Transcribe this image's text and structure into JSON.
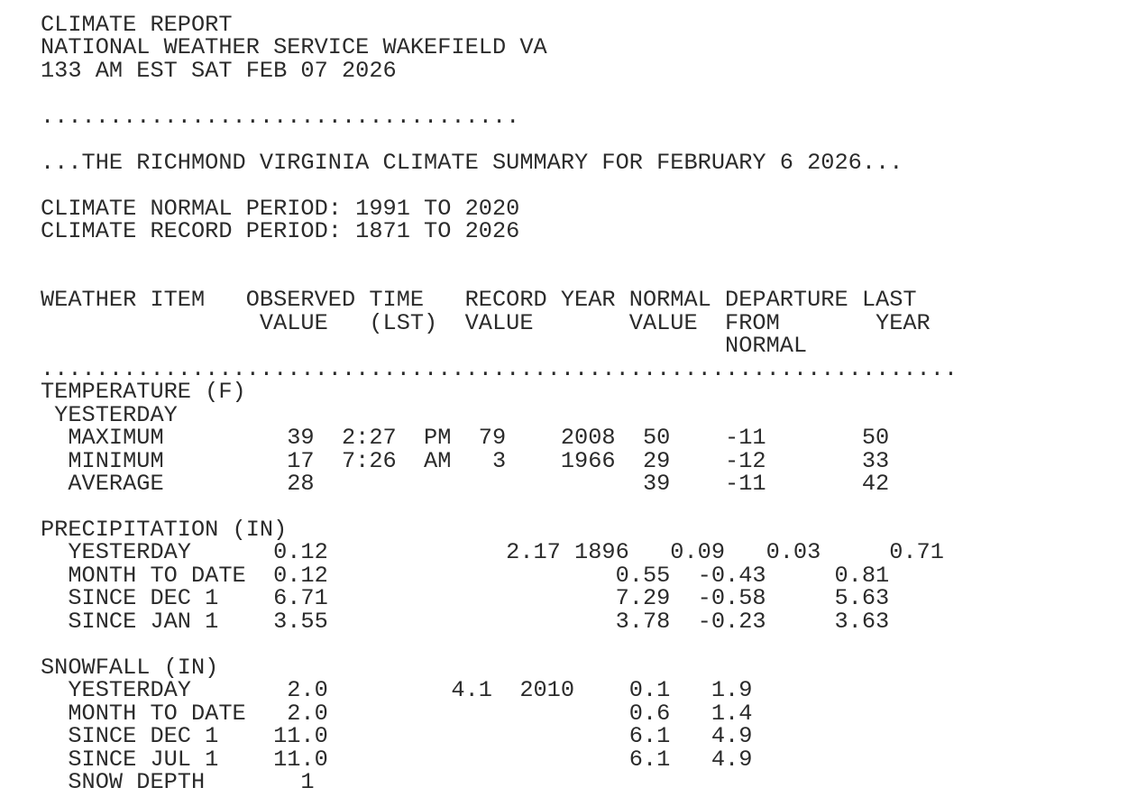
{
  "report": {
    "masthead": [
      "CLIMATE REPORT",
      "NATIONAL WEATHER SERVICE WAKEFIELD VA",
      "133 AM EST SAT FEB 07 2026",
      ""
    ],
    "separator": [
      "...................................",
      ""
    ],
    "headline": [
      "...THE RICHMOND VIRGINIA CLIMATE SUMMARY FOR FEBRUARY 6 2026...",
      ""
    ],
    "periods": [
      "CLIMATE NORMAL PERIOD: 1991 TO 2020",
      "CLIMATE RECORD PERIOD: 1871 TO 2026",
      "",
      ""
    ],
    "table_header": [
      "WEATHER ITEM   OBSERVED TIME   RECORD YEAR NORMAL DEPARTURE LAST",
      "                VALUE   (LST)  VALUE       VALUE  FROM       YEAR",
      "                                                  NORMAL",
      "..................................................................."
    ],
    "temperature": [
      "TEMPERATURE (F)",
      " YESTERDAY",
      "  MAXIMUM         39  2:27  PM  79    2008  50    -11       50",
      "  MINIMUM         17  7:26  AM   3    1966  29    -12       33",
      "  AVERAGE         28                        39    -11       42",
      ""
    ],
    "precipitation": [
      "PRECIPITATION (IN)",
      "  YESTERDAY      0.12             2.17 1896   0.09   0.03     0.71",
      "  MONTH TO DATE  0.12                     0.55  -0.43     0.81",
      "  SINCE DEC 1    6.71                     7.29  -0.58     5.63",
      "  SINCE JAN 1    3.55                     3.78  -0.23     3.63",
      ""
    ],
    "snowfall": [
      "SNOWFALL (IN)",
      "  YESTERDAY       2.0         4.1  2010    0.1   1.9",
      "  MONTH TO DATE   2.0                      0.6   1.4",
      "  SINCE DEC 1    11.0                      6.1   4.9",
      "  SINCE JUL 1    11.0                      6.1   4.9",
      "  SNOW DEPTH       1"
    ]
  },
  "table_values": {
    "column_headers": [
      "WEATHER ITEM",
      "OBSERVED VALUE",
      "TIME (LST)",
      "RECORD VALUE",
      "YEAR",
      "NORMAL VALUE",
      "DEPARTURE FROM NORMAL",
      "LAST YEAR"
    ],
    "temperature_f": {
      "title": "TEMPERATURE (F)",
      "subgroup": "YESTERDAY",
      "rows": [
        {
          "item": "MAXIMUM",
          "observed": 39,
          "time_lst": "2:27 PM",
          "record": 79,
          "record_year": 2008,
          "normal": 50,
          "departure": -11,
          "last_year": 50
        },
        {
          "item": "MINIMUM",
          "observed": 17,
          "time_lst": "7:26 AM",
          "record": 3,
          "record_year": 1966,
          "normal": 29,
          "departure": -12,
          "last_year": 33
        },
        {
          "item": "AVERAGE",
          "observed": 28,
          "normal": 39,
          "departure": -11,
          "last_year": 42
        }
      ]
    },
    "precipitation_in": {
      "title": "PRECIPITATION (IN)",
      "rows": [
        {
          "item": "YESTERDAY",
          "observed": 0.12,
          "record": 2.17,
          "record_year": 1896,
          "normal": 0.09,
          "departure": 0.03,
          "last_year": 0.71
        },
        {
          "item": "MONTH TO DATE",
          "observed": 0.12,
          "normal": 0.55,
          "departure": -0.43,
          "last_year": 0.81
        },
        {
          "item": "SINCE DEC 1",
          "observed": 6.71,
          "normal": 7.29,
          "departure": -0.58,
          "last_year": 5.63
        },
        {
          "item": "SINCE JAN 1",
          "observed": 3.55,
          "normal": 3.78,
          "departure": -0.23,
          "last_year": 3.63
        }
      ]
    },
    "snowfall_in": {
      "title": "SNOWFALL (IN)",
      "rows": [
        {
          "item": "YESTERDAY",
          "observed": 2.0,
          "record": 4.1,
          "record_year": 2010,
          "normal": 0.1,
          "departure": 1.9
        },
        {
          "item": "MONTH TO DATE",
          "observed": 2.0,
          "normal": 0.6,
          "departure": 1.4
        },
        {
          "item": "SINCE DEC 1",
          "observed": 11.0,
          "normal": 6.1,
          "departure": 4.9
        },
        {
          "item": "SINCE JUL 1",
          "observed": 11.0,
          "normal": 6.1,
          "departure": 4.9
        },
        {
          "item": "SNOW DEPTH",
          "observed": 1
        }
      ]
    }
  },
  "colors": {
    "text": "#2b2b2b",
    "background": "#ffffff"
  }
}
